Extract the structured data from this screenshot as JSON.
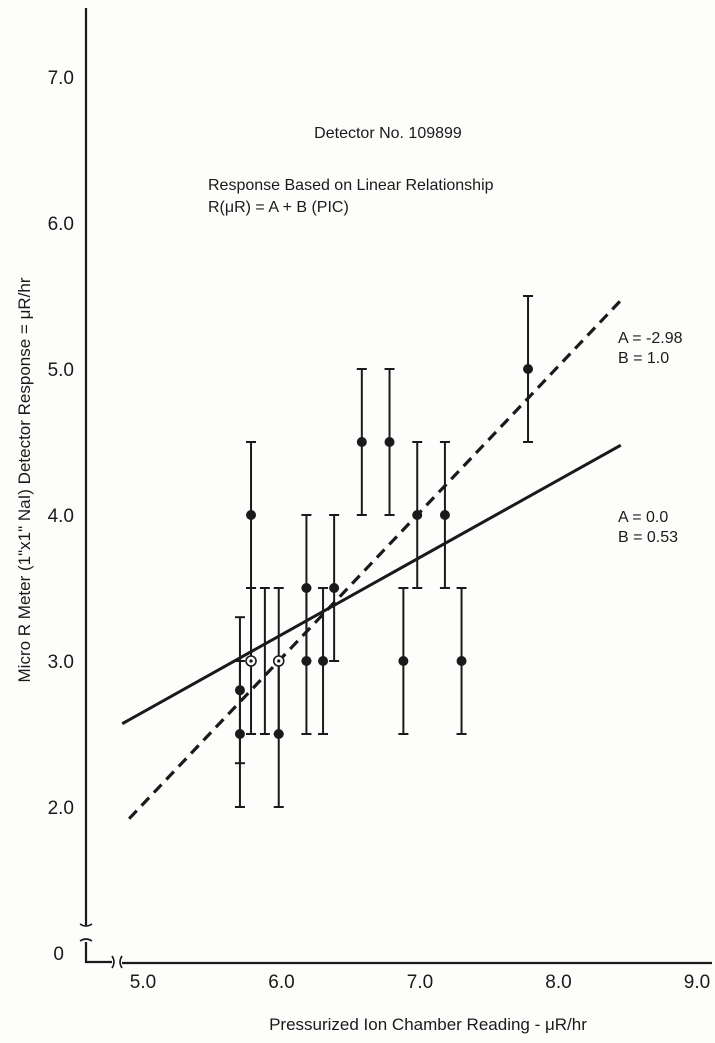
{
  "chart_data": {
    "type": "scatter",
    "title": "Detector No. 109899",
    "subtitle_lines": [
      "Response Based on Linear Relationship",
      "R(μR) = A + B (PIC)"
    ],
    "xlabel": "Pressurized Ion Chamber Reading - μR/hr",
    "ylabel": "Micro R Meter (1\"x1\" NaI) Detector Response = μR/hr",
    "xlim": [
      4.85,
      9.0
    ],
    "ylim": [
      1.0,
      7.5
    ],
    "x_ticks": [
      "5.0",
      "6.0",
      "7.0",
      "8.0",
      "9.0"
    ],
    "y_ticks": [
      "2.0",
      "3.0",
      "4.0",
      "5.0",
      "6.0",
      "7.0"
    ],
    "y_origin_label": "0",
    "axis_breaks": true,
    "grid": false,
    "points": [
      {
        "x": 5.7,
        "y": 2.5,
        "err": 0.5,
        "marker": "filled"
      },
      {
        "x": 5.7,
        "y": 2.8,
        "err": 0.5,
        "marker": "filled"
      },
      {
        "x": 5.78,
        "y": 4.0,
        "err": 0.5,
        "marker": "filled"
      },
      {
        "x": 5.78,
        "y": 3.0,
        "err": 0.5,
        "marker": "open"
      },
      {
        "x": 5.88,
        "y": 3.0,
        "err": 0.5,
        "marker": "none"
      },
      {
        "x": 5.98,
        "y": 3.0,
        "err": 0.5,
        "marker": "open"
      },
      {
        "x": 5.98,
        "y": 2.5,
        "err": 0.5,
        "marker": "filled"
      },
      {
        "x": 6.18,
        "y": 3.5,
        "err": 0.5,
        "marker": "filled"
      },
      {
        "x": 6.18,
        "y": 3.0,
        "err": 0.5,
        "marker": "filled"
      },
      {
        "x": 6.3,
        "y": 3.0,
        "err": 0.5,
        "marker": "filled"
      },
      {
        "x": 6.38,
        "y": 3.5,
        "err": 0.5,
        "marker": "filled"
      },
      {
        "x": 6.58,
        "y": 4.5,
        "err": 0.5,
        "marker": "filled"
      },
      {
        "x": 6.78,
        "y": 4.5,
        "err": 0.5,
        "marker": "filled"
      },
      {
        "x": 6.88,
        "y": 3.0,
        "err": 0.5,
        "marker": "filled"
      },
      {
        "x": 6.98,
        "y": 4.0,
        "err": 0.5,
        "marker": "filled"
      },
      {
        "x": 7.18,
        "y": 4.0,
        "err": 0.5,
        "marker": "filled"
      },
      {
        "x": 7.3,
        "y": 3.0,
        "err": 0.5,
        "marker": "filled"
      },
      {
        "x": 7.78,
        "y": 5.0,
        "err": 0.5,
        "marker": "filled"
      }
    ],
    "fits": [
      {
        "style": "dashed",
        "A": -2.98,
        "B": 1.0,
        "x_range": [
          4.9,
          8.45
        ],
        "label_lines": [
          "A = -2.98",
          "B = 1.0"
        ]
      },
      {
        "style": "solid",
        "A": 0.0,
        "B": 0.53,
        "x_range": [
          4.85,
          8.45
        ],
        "label_lines": [
          "A = 0.0",
          "B = 0.53"
        ]
      }
    ]
  }
}
